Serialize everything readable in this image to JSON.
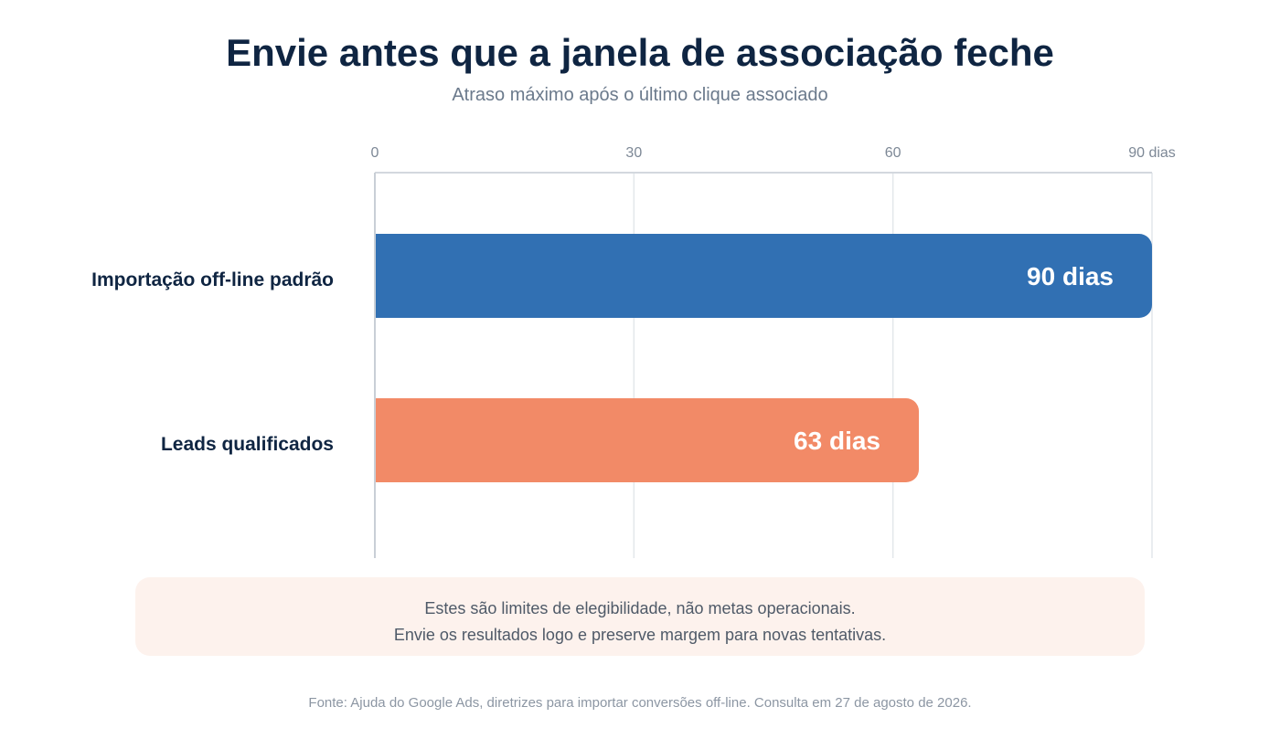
{
  "header": {
    "title": "Envie antes que a janela de associação feche",
    "subtitle": "Atraso máximo após o último clique associado"
  },
  "chart_data": {
    "type": "bar",
    "orientation": "horizontal",
    "title": "Envie antes que a janela de associação feche",
    "subtitle": "Atraso máximo após o último clique associado",
    "categories": [
      "Importação off-line padrão",
      "Leads qualificados"
    ],
    "values": [
      90,
      63
    ],
    "data_labels": [
      "90 dias",
      "63 dias"
    ],
    "colors": [
      "#3170b3",
      "#f28a67"
    ],
    "xlim": [
      0,
      90
    ],
    "x_ticks": [
      0,
      30,
      60,
      90
    ],
    "x_tick_labels": [
      "0",
      "30",
      "60",
      "90 dias"
    ],
    "axis_position": "top",
    "grid": true
  },
  "note": {
    "line1": "Estes são limites de elegibilidade, não metas operacionais.",
    "line2": "Envie os resultados logo e preserve margem para novas tentativas."
  },
  "source": "Fonte: Ajuda do Google Ads, diretrizes para importar conversões off-line. Consulta em 27 de agosto de 2026."
}
